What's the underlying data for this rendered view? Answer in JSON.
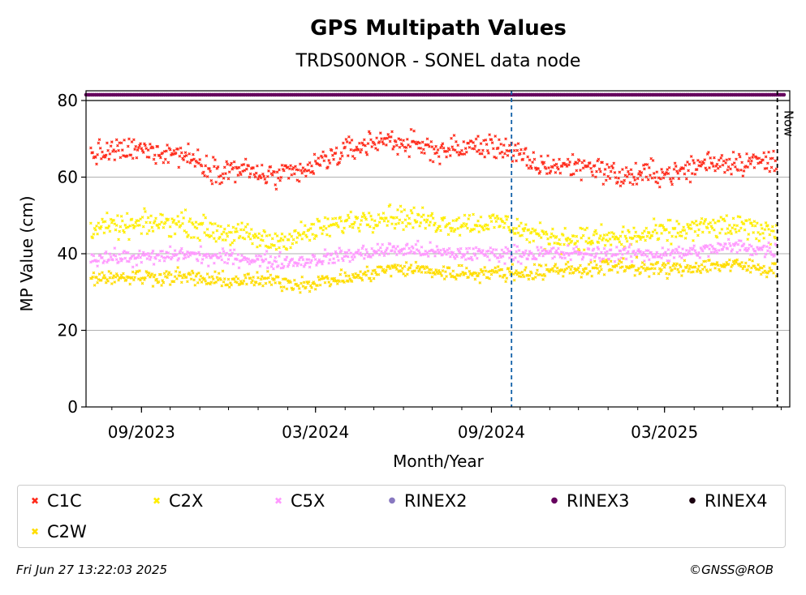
{
  "chart_data": {
    "type": "scatter",
    "title": "GPS Multipath Values",
    "subtitle": "TRDS00NOR - SONEL data node",
    "xlabel": "Month/Year",
    "ylabel": "MP Value (cm)",
    "ylim": [
      0,
      80
    ],
    "yticks": [
      0,
      20,
      40,
      60,
      80
    ],
    "xlim": [
      "2023-07-05",
      "2025-07-10"
    ],
    "xticks": [
      {
        "date": "2023-09-01",
        "label": "09/2023"
      },
      {
        "date": "2024-03-01",
        "label": "03/2024"
      },
      {
        "date": "2024-09-01",
        "label": "09/2024"
      },
      {
        "date": "2025-03-01",
        "label": "03/2025"
      }
    ],
    "grid": "horizontal",
    "now_label": "Now",
    "now_date": "2025-06-27",
    "change_date": "2024-09-22",
    "series": [
      {
        "name": "C1C",
        "color": "#ff2a1a",
        "marker": "x",
        "dates": [
          "2023-07-15",
          "2023-08-15",
          "2023-09-15",
          "2023-10-15",
          "2023-11-15",
          "2023-12-15",
          "2024-01-15",
          "2024-02-15",
          "2024-03-15",
          "2024-04-15",
          "2024-05-15",
          "2024-06-15",
          "2024-07-15",
          "2024-08-15",
          "2024-09-15",
          "2024-10-15",
          "2024-11-15",
          "2024-12-15",
          "2025-01-15",
          "2025-02-15",
          "2025-03-15",
          "2025-04-15",
          "2025-05-15",
          "2025-06-15"
        ],
        "values": [
          66,
          67,
          67,
          66,
          62,
          62,
          60,
          61,
          65,
          68,
          70,
          68,
          67,
          68,
          68,
          63,
          63,
          63,
          60,
          61,
          61,
          64,
          64,
          64
        ]
      },
      {
        "name": "C2X",
        "color": "#ffee00",
        "marker": "x",
        "dates": [
          "2023-07-15",
          "2023-08-15",
          "2023-09-15",
          "2023-10-15",
          "2023-11-15",
          "2023-12-15",
          "2024-01-15",
          "2024-02-15",
          "2024-03-15",
          "2024-04-15",
          "2024-05-15",
          "2024-06-15",
          "2024-07-15",
          "2024-08-15",
          "2024-09-15",
          "2024-10-15",
          "2024-11-15",
          "2024-12-15",
          "2025-01-15",
          "2025-02-15",
          "2025-03-15",
          "2025-04-15",
          "2025-05-15",
          "2025-06-15"
        ],
        "values": [
          47,
          47,
          48,
          48,
          46,
          45,
          43,
          45,
          47,
          49,
          50,
          49,
          48,
          48,
          48,
          45,
          44,
          44,
          44,
          45,
          46,
          47,
          47,
          46
        ]
      },
      {
        "name": "C5X",
        "color": "#ff99ff",
        "marker": "x",
        "dates": [
          "2023-07-15",
          "2023-08-15",
          "2023-09-15",
          "2023-10-15",
          "2023-11-15",
          "2023-12-15",
          "2024-01-15",
          "2024-02-15",
          "2024-03-15",
          "2024-04-15",
          "2024-05-15",
          "2024-06-15",
          "2024-07-15",
          "2024-08-15",
          "2024-09-15",
          "2024-10-15",
          "2024-11-15",
          "2024-12-15",
          "2025-01-15",
          "2025-02-15",
          "2025-03-15",
          "2025-04-15",
          "2025-05-15",
          "2025-06-15"
        ],
        "values": [
          39,
          39,
          39,
          40,
          39,
          39,
          38,
          38,
          39,
          40,
          41,
          41,
          40,
          40,
          40,
          40,
          40,
          40,
          40,
          40,
          40,
          41,
          42,
          41
        ]
      },
      {
        "name": "RINEX2",
        "color": "#8878c0",
        "marker": "o",
        "dates": [],
        "values": []
      },
      {
        "name": "RINEX3",
        "color": "#66005e",
        "marker": "o",
        "dates": [
          "2023-07-05",
          "2025-07-05"
        ],
        "values": [
          81.5,
          81.5
        ]
      },
      {
        "name": "RINEX4",
        "color": "#1a0010",
        "marker": "o",
        "dates": [],
        "values": []
      },
      {
        "name": "C2W",
        "color": "#ffdd00",
        "marker": "x",
        "dates": [
          "2023-07-15",
          "2023-08-15",
          "2023-09-15",
          "2023-10-15",
          "2023-11-15",
          "2023-12-15",
          "2024-01-15",
          "2024-02-15",
          "2024-03-15",
          "2024-04-15",
          "2024-05-15",
          "2024-06-15",
          "2024-07-15",
          "2024-08-15",
          "2024-09-15",
          "2024-10-15",
          "2024-11-15",
          "2024-12-15",
          "2025-01-15",
          "2025-02-15",
          "2025-03-15",
          "2025-04-15",
          "2025-05-15",
          "2025-06-15"
        ],
        "values": [
          34,
          34,
          34,
          34,
          33,
          33,
          33,
          32,
          33,
          34,
          36,
          36,
          35,
          35,
          35,
          35,
          36,
          36,
          37,
          36,
          36,
          37,
          37,
          36
        ]
      }
    ]
  },
  "footer": {
    "timestamp": "Fri Jun 27 13:22:03 2025",
    "credit": "©GNSS@ROB"
  }
}
